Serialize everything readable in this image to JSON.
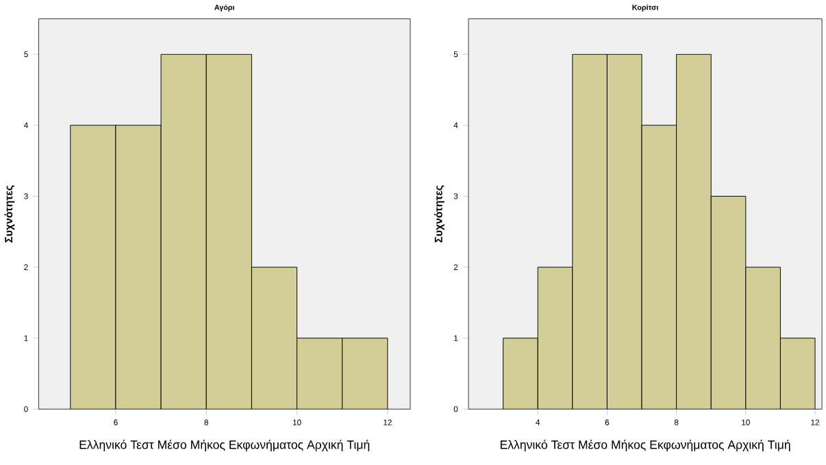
{
  "chart_data": [
    {
      "type": "histogram",
      "title": "Αγόρι",
      "xlabel": "Ελληνικό Τεστ Μέσο Μήκος Εκφωνήματος Αρχική Τιμή",
      "ylabel": "Συχνότητες",
      "bins": [
        5,
        6,
        7,
        8,
        9,
        10,
        11,
        12
      ],
      "values": [
        4,
        4,
        5,
        5,
        2,
        1,
        1
      ],
      "color": "#d3ce97",
      "xlim": [
        4.3,
        12.5
      ],
      "ylim": [
        0,
        5.5
      ],
      "xticks": [
        6,
        8,
        10,
        12
      ],
      "yticks": [
        0,
        1,
        2,
        3,
        4,
        5
      ]
    },
    {
      "type": "histogram",
      "title": "Κορίτσι",
      "xlabel": "Ελληνικό Τεστ Μέσο Μήκος Εκφωνήματος Αρχική Τιμή",
      "ylabel": "Συχνότητες",
      "bins": [
        3,
        4,
        5,
        6,
        7,
        8,
        9,
        10,
        11,
        12
      ],
      "values": [
        1,
        2,
        5,
        5,
        4,
        5,
        3,
        2,
        1
      ],
      "color": "#d3ce97",
      "xlim": [
        2,
        12.2
      ],
      "ylim": [
        0,
        5.5
      ],
      "xticks": [
        4,
        6,
        8,
        10,
        12
      ],
      "yticks": [
        0,
        1,
        2,
        3,
        4,
        5
      ]
    }
  ]
}
